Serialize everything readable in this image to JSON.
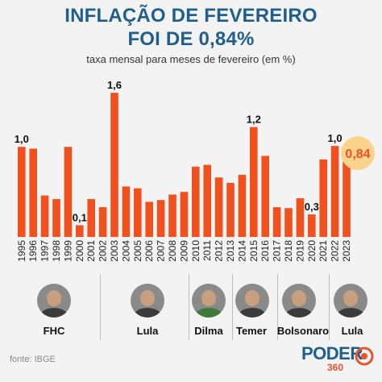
{
  "header": {
    "title_line1": "INFLAÇÃO DE FEVEREIRO",
    "title_line2": "FOI DE 0,84%",
    "subtitle": "taxa mensal para meses de fevereiro (em %)"
  },
  "chart_data": {
    "type": "bar",
    "categories": [
      "1995",
      "1996",
      "1997",
      "1998",
      "1999",
      "2000",
      "2001",
      "2002",
      "2003",
      "2004",
      "2005",
      "2006",
      "2007",
      "2008",
      "2009",
      "2010",
      "2011",
      "2012",
      "2013",
      "2014",
      "2015",
      "2016",
      "2017",
      "2018",
      "2019",
      "2020",
      "2021",
      "2022",
      "2023"
    ],
    "values": [
      1.0,
      0.98,
      0.46,
      0.42,
      1.0,
      0.13,
      0.42,
      0.33,
      1.6,
      0.56,
      0.54,
      0.39,
      0.41,
      0.47,
      0.5,
      0.78,
      0.8,
      0.66,
      0.6,
      0.69,
      1.22,
      0.9,
      0.33,
      0.32,
      0.43,
      0.25,
      0.86,
      1.01,
      0.84
    ],
    "data_labels": [
      {
        "index": 0,
        "text": "1,0"
      },
      {
        "index": 5,
        "text": "0,1"
      },
      {
        "index": 8,
        "text": "1,6"
      },
      {
        "index": 20,
        "text": "1,2"
      },
      {
        "index": 25,
        "text": "0,3"
      },
      {
        "index": 27,
        "text": "1,0"
      }
    ],
    "highlight": {
      "index": 28,
      "text": "0,84"
    },
    "bar_color": "#f0511f",
    "highlight_color": "#fbd38d",
    "highlight_text_color": "#f0511f",
    "ylim": [
      0,
      1.7
    ]
  },
  "presidents": [
    {
      "name": "FHC",
      "portrait": "portrait-fhc"
    },
    {
      "name": "Lula",
      "portrait": "portrait-lula"
    },
    {
      "name": "Dilma",
      "portrait": "portrait-dilma"
    },
    {
      "name": "Temer",
      "portrait": "portrait-temer"
    },
    {
      "name": "Bolsonaro",
      "portrait": "portrait-bolsonaro"
    },
    {
      "name": "Lula",
      "portrait": "portrait-lula"
    }
  ],
  "footer": {
    "source": "fonte: IBGE",
    "brand": "PODER",
    "brand_sub": "360"
  }
}
